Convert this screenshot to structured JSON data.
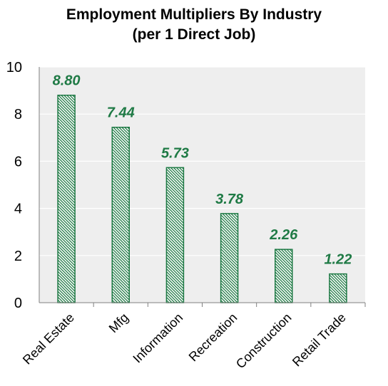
{
  "chart_data": {
    "type": "bar",
    "title": [
      "Employment Multipliers By Industry",
      "(per 1 Direct Job)"
    ],
    "categories": [
      "Real Estate",
      "Mfg",
      "Information",
      "Recreation",
      "Construction",
      "Retail Trade"
    ],
    "values": [
      8.8,
      7.44,
      5.73,
      3.78,
      2.26,
      1.22
    ],
    "data_labels": [
      "8.80",
      "7.44",
      "5.73",
      "3.78",
      "2.26",
      "1.22"
    ],
    "yticks": [
      "0",
      "2",
      "4",
      "6",
      "8",
      "10"
    ],
    "ylim": [
      0,
      10
    ],
    "grid": true,
    "legend": "none",
    "colors": {
      "bar_stroke": "#1f7a45",
      "bar_hatch": "#1f7a45",
      "data_label": "#1f7a45",
      "plot_background": "#eeeeee",
      "gridline": "#ffffff",
      "axis": "#808080"
    }
  }
}
